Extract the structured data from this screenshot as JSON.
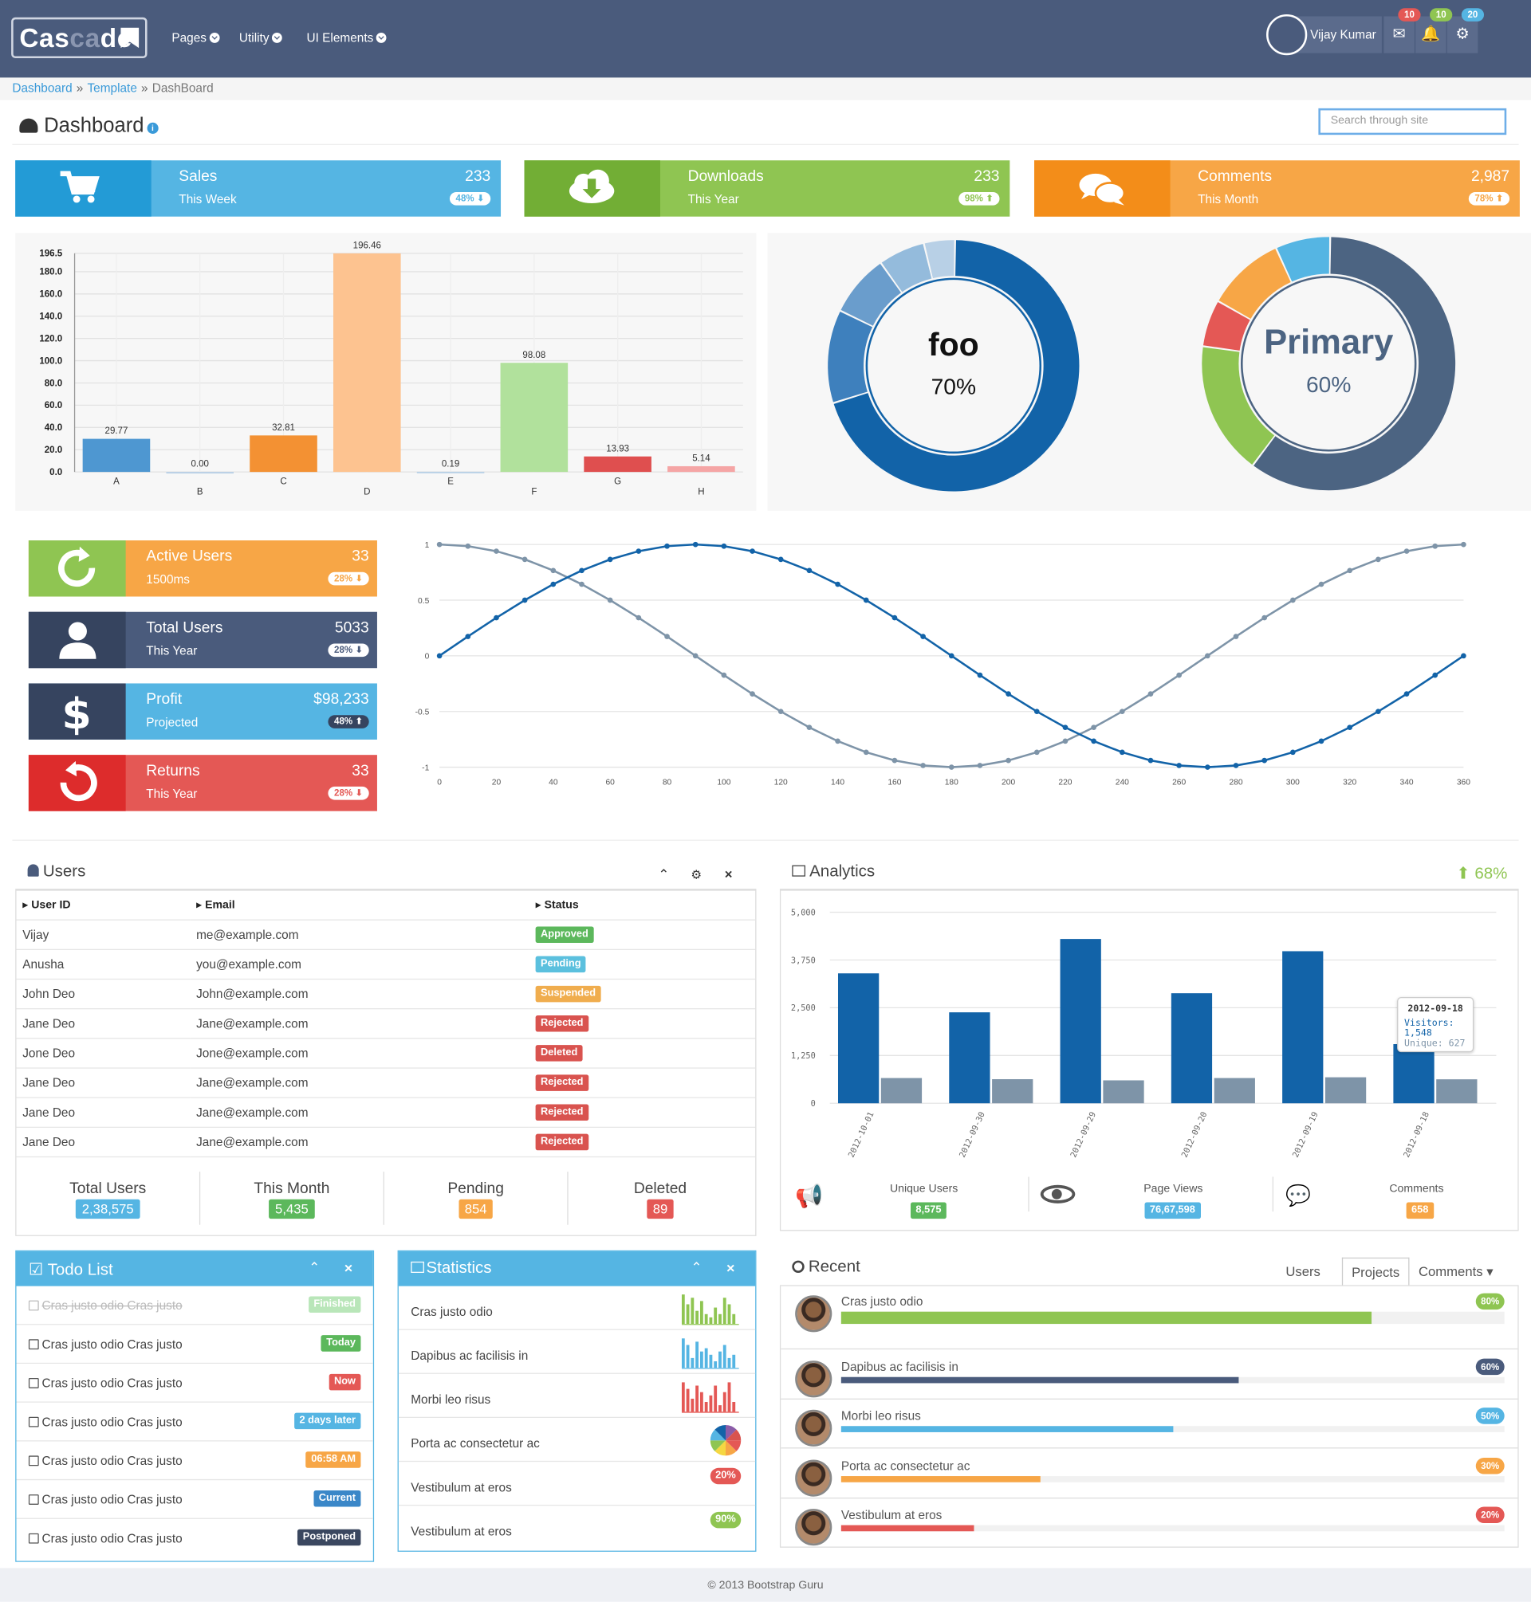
{
  "brand": {
    "name_a": "Cas",
    "name_b": "ca",
    "name_c": "de"
  },
  "nav": {
    "items": [
      "Pages",
      "Utility",
      "UI Elements"
    ],
    "user": "Vijay Kumar",
    "badges": [
      "10",
      "10",
      "20"
    ]
  },
  "breadcrumb": {
    "items": [
      "Dashboard",
      "Template",
      "DashBoard"
    ]
  },
  "page": {
    "title": "Dashboard",
    "search_placeholder": "Search through site"
  },
  "stats_top": [
    {
      "title": "Sales",
      "sub": "This Week",
      "value": "233",
      "pct": "48%",
      "dir": "down"
    },
    {
      "title": "Downloads",
      "sub": "This Year",
      "value": "233",
      "pct": "98%",
      "dir": "up"
    },
    {
      "title": "Comments",
      "sub": "This Month",
      "value": "2,987",
      "pct": "78%",
      "dir": "up"
    }
  ],
  "colors": {
    "blue": "#55b5e3",
    "green": "#8fc552",
    "orange": "#f7a646",
    "navy": "#3a475f",
    "red": "#e45855",
    "darkblue": "#1263a8",
    "slate": "#4c6482"
  },
  "chart_bar": {
    "type": "bar",
    "categories": [
      "A",
      "B",
      "C",
      "D",
      "E",
      "F",
      "G",
      "H"
    ],
    "values": [
      29.77,
      0.0,
      32.81,
      196.46,
      0.19,
      98.08,
      13.93,
      5.14
    ],
    "value_labels": [
      "29.77",
      "0.00",
      "32.81",
      "196.46",
      "0.19",
      "98.08",
      "13.93",
      "5.14"
    ],
    "yticks": [
      "0.0",
      "20.0",
      "40.0",
      "60.0",
      "80.0",
      "100.0",
      "120.0",
      "140.0",
      "160.0",
      "180.0",
      "196.5"
    ],
    "ylim": [
      0,
      196.5
    ],
    "colors": [
      "#4e97d1",
      "#b8d0e6",
      "#f39133",
      "#fdc390",
      "#b8d0e6",
      "#b1e19c",
      "#df4f4f",
      "#f5a5a5"
    ]
  },
  "donuts": [
    {
      "label": "foo",
      "value": "70%",
      "segments": [
        70,
        12,
        8,
        6,
        4
      ],
      "colors": [
        "#1263a8",
        "#3e80bd",
        "#6a9dcc",
        "#94bbdc",
        "#b8d0e6"
      ]
    },
    {
      "label": "Primary",
      "value": "60%",
      "segments": [
        60,
        17,
        6,
        10,
        7
      ],
      "colors": [
        "#4c6482",
        "#8fc552",
        "#e45855",
        "#f7a646",
        "#55b5e3"
      ]
    }
  ],
  "stats_side": [
    {
      "title": "Active Users",
      "sub": "1500ms",
      "value": "33",
      "pct": "28%",
      "dir": "down"
    },
    {
      "title": "Total Users",
      "sub": "This Year",
      "value": "5033",
      "pct": "28%",
      "dir": "down"
    },
    {
      "title": "Profit",
      "sub": "Projected",
      "value": "$98,233",
      "pct": "48%",
      "dir": "up"
    },
    {
      "title": "Returns",
      "sub": "This Year",
      "value": "33",
      "pct": "28%",
      "dir": "down"
    }
  ],
  "chart_line": {
    "type": "line",
    "x": [
      0,
      10,
      20,
      30,
      40,
      50,
      60,
      70,
      80,
      90,
      100,
      110,
      120,
      130,
      140,
      150,
      160,
      170,
      180,
      190,
      200,
      210,
      220,
      230,
      240,
      250,
      260,
      270,
      280,
      290,
      300,
      310,
      320,
      330,
      340,
      350,
      360
    ],
    "series": [
      {
        "name": "",
        "fn": "sin",
        "color": "#1263a8"
      },
      {
        "name": "",
        "fn": "cos",
        "color": "#7e94a8"
      }
    ],
    "xticks": [
      "0",
      "20",
      "40",
      "60",
      "80",
      "100",
      "120",
      "140",
      "160",
      "180",
      "200",
      "220",
      "240",
      "260",
      "280",
      "300",
      "320",
      "340",
      "360"
    ],
    "yticks": [
      "1",
      "0.5",
      "0",
      "-0.5",
      "-1"
    ],
    "ylim": [
      -1,
      1
    ],
    "xlim": [
      0,
      360
    ]
  },
  "users": {
    "title": "Users",
    "headers": [
      "User ID",
      "Email",
      "Status"
    ],
    "rows": [
      {
        "id": "Vijay",
        "email": "me@example.com",
        "status": "Approved",
        "color": "#5cb85c"
      },
      {
        "id": "Anusha",
        "email": "you@example.com",
        "status": "Pending",
        "color": "#5bc0de"
      },
      {
        "id": "John Deo",
        "email": "John@example.com",
        "status": "Suspended",
        "color": "#f0ad4e"
      },
      {
        "id": "Jane Deo",
        "email": "Jane@example.com",
        "status": "Rejected",
        "color": "#d9534f"
      },
      {
        "id": "Jone Deo",
        "email": "Jone@example.com",
        "status": "Deleted",
        "color": "#d9534f"
      },
      {
        "id": "Jane Deo",
        "email": "Jane@example.com",
        "status": "Rejected",
        "color": "#d9534f"
      },
      {
        "id": "Jane Deo",
        "email": "Jane@example.com",
        "status": "Rejected",
        "color": "#d9534f"
      },
      {
        "id": "Jane Deo",
        "email": "Jane@example.com",
        "status": "Rejected",
        "color": "#d9534f"
      }
    ],
    "summary": [
      {
        "label": "Total Users",
        "value": "2,38,575",
        "color": "#55b5e3"
      },
      {
        "label": "This Month",
        "value": "5,435",
        "color": "#5cb85c"
      },
      {
        "label": "Pending",
        "value": "854",
        "color": "#f7a646"
      },
      {
        "label": "Deleted",
        "value": "89",
        "color": "#e45855"
      }
    ]
  },
  "analytics": {
    "title": "Analytics",
    "change": "68%",
    "chart": {
      "type": "bar",
      "categories": [
        "2012-10-01",
        "2012-09-30",
        "2012-09-29",
        "2012-09-20",
        "2012-09-19",
        "2012-09-18"
      ],
      "series": [
        {
          "name": "Visitors",
          "values": [
            3400,
            2380,
            4300,
            2880,
            3980,
            1548
          ],
          "color": "#1263a8"
        },
        {
          "name": "Unique",
          "values": [
            660,
            630,
            600,
            660,
            680,
            627
          ],
          "color": "#7e94a8"
        }
      ],
      "yticks": [
        "0",
        "1,250",
        "2,500",
        "3,750",
        "5,000"
      ],
      "ylim": [
        0,
        5000
      ]
    },
    "tooltip": {
      "date": "2012-09-18",
      "l1": "Visitors:",
      "v1": "1,548",
      "l2": "Unique:",
      "v2": "627"
    },
    "stats": [
      {
        "label": "Unique Users",
        "value": "8,575",
        "color": "#5cb85c"
      },
      {
        "label": "Page Views",
        "value": "76,67,598",
        "color": "#55b5e3"
      },
      {
        "label": "Comments",
        "value": "658",
        "color": "#f7a646"
      }
    ]
  },
  "todo": {
    "title": "Todo List",
    "items": [
      {
        "text": "Cras justo odio Cras justo",
        "tag": "Finished",
        "color": "#b9e6b9",
        "done": true
      },
      {
        "text": "Cras justo odio Cras justo",
        "tag": "Today",
        "color": "#5cb85c"
      },
      {
        "text": "Cras justo odio Cras justo",
        "tag": "Now",
        "color": "#e45855"
      },
      {
        "text": "Cras justo odio Cras justo",
        "tag": "2 days later",
        "color": "#55b5e3"
      },
      {
        "text": "Cras justo odio Cras justo",
        "tag": "06:58 AM",
        "color": "#f7a646"
      },
      {
        "text": "Cras justo odio Cras justo",
        "tag": "Current",
        "color": "#3a87c8"
      },
      {
        "text": "Cras justo odio Cras justo",
        "tag": "Postponed",
        "color": "#3a475f"
      }
    ]
  },
  "statistics": {
    "title": "Statistics",
    "items": [
      {
        "text": "Cras justo odio",
        "kind": "bars",
        "color": "#8fc552",
        "values": [
          9,
          6,
          8,
          4,
          7,
          3,
          2,
          5,
          3,
          8,
          6,
          3
        ]
      },
      {
        "text": "Dapibus ac facilisis in",
        "kind": "bars",
        "color": "#55b5e3",
        "values": [
          9,
          7,
          3,
          8,
          5,
          6,
          4,
          2,
          5,
          7,
          3,
          4
        ]
      },
      {
        "text": "Morbi leo risus",
        "kind": "bars",
        "color": "#e45855",
        "values": [
          9,
          7,
          4,
          8,
          6,
          3,
          5,
          8,
          2,
          6,
          9,
          3
        ]
      },
      {
        "text": "Porta ac consectetur ac",
        "kind": "pie"
      },
      {
        "text": "Vestibulum at eros",
        "kind": "badge",
        "badge": "20%",
        "color": "#e45855"
      },
      {
        "text": "Vestibulum at eros",
        "kind": "badge",
        "badge": "90%",
        "color": "#8fc552"
      }
    ]
  },
  "recent": {
    "title": "Recent",
    "tabs": [
      "Users",
      "Projects",
      "Comments"
    ],
    "items": [
      {
        "text": "Cras justo odio",
        "pct": "80%",
        "value": 0.8,
        "color": "#8fc552"
      },
      {
        "text": "Dapibus ac facilisis in",
        "pct": "60%",
        "value": 0.6,
        "color": "#4a5b7c"
      },
      {
        "text": "Morbi leo risus",
        "pct": "50%",
        "value": 0.5,
        "color": "#55b5e3"
      },
      {
        "text": "Porta ac consectetur ac",
        "pct": "30%",
        "value": 0.3,
        "color": "#f7a646"
      },
      {
        "text": "Vestibulum at eros",
        "pct": "20%",
        "value": 0.2,
        "color": "#e45855"
      }
    ]
  },
  "footer": "© 2013 Bootstrap Guru"
}
